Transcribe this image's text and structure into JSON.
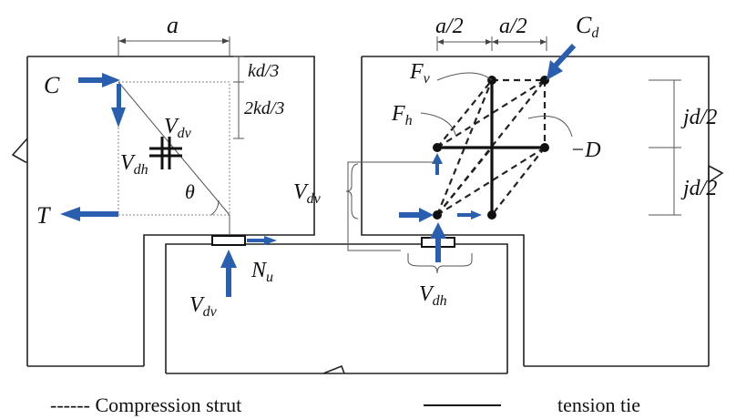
{
  "labels": {
    "a_dim": "a",
    "half_a_1": "a/2",
    "half_a_2": "a/2",
    "kd3": "kd/3",
    "two_kd3": "2kd/3",
    "C": "C",
    "T": "T",
    "V_dv_left": "V",
    "V_dv_left_sub": "dv",
    "V_dh_left": "V",
    "V_dh_left_sub": "dh",
    "theta": "θ",
    "N_u": "N",
    "N_u_sub": "u",
    "V_dv_bottom": "V",
    "V_dv_bottom_sub": "dv",
    "C_d": "C",
    "C_d_sub": "d",
    "F_v": "F",
    "F_v_sub": "v",
    "F_h": "F",
    "F_h_sub": "h",
    "minus_D": "−D",
    "jd2_top": "jd/2",
    "jd2_bottom": "jd/2",
    "V_dv_right": "V",
    "V_dv_right_sub": "dv",
    "V_dh_right": "V",
    "V_dh_right_sub": "dh"
  },
  "legend": {
    "compression": "------ Compression strut",
    "tension": "tension tie"
  },
  "colors": {
    "arrow": "#2a5fb0",
    "line": "#222222"
  }
}
